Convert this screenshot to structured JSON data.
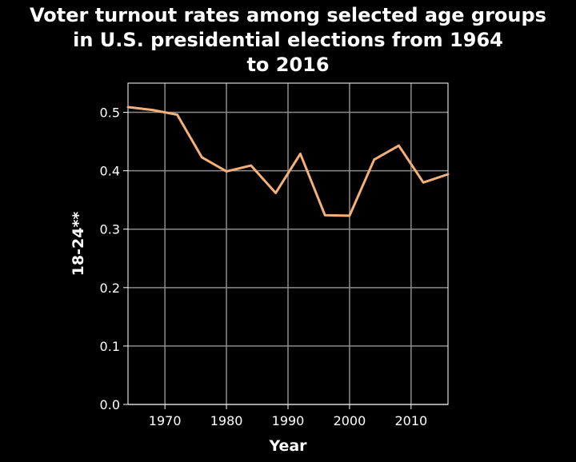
{
  "chart_data": {
    "type": "line",
    "title_lines": [
      "Voter turnout rates among selected age groups",
      "in U.S. presidential elections from 1964",
      "to 2016"
    ],
    "xlabel": "Year",
    "ylabel": "18-24**",
    "x_ticks": [
      1970,
      1980,
      1990,
      2000,
      2010
    ],
    "x_tick_labels": [
      "1970",
      "1980",
      "1990",
      "2000",
      "2010"
    ],
    "y_ticks": [
      0.0,
      0.1,
      0.2,
      0.3,
      0.4,
      0.5
    ],
    "y_tick_labels": [
      "0.0",
      "0.1",
      "0.2",
      "0.3",
      "0.4",
      "0.5"
    ],
    "xlim": [
      1964,
      2016
    ],
    "ylim": [
      0.0,
      0.55
    ],
    "grid": true,
    "series": [
      {
        "x": [
          1964,
          1968,
          1972,
          1976,
          1980,
          1984,
          1988,
          1992,
          1996,
          2000,
          2004,
          2008,
          2012,
          2016
        ],
        "y": [
          0.509,
          0.504,
          0.496,
          0.423,
          0.399,
          0.409,
          0.362,
          0.429,
          0.324,
          0.323,
          0.419,
          0.443,
          0.38,
          0.394
        ],
        "color": "#f4b07a"
      }
    ]
  },
  "colors": {
    "background": "#000000",
    "text": "#ffffff",
    "grid": "#8c8c8c",
    "axis": "#ffffff"
  }
}
